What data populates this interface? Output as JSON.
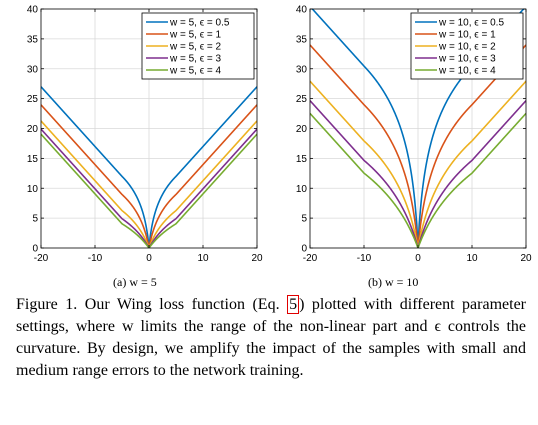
{
  "chart_data": [
    {
      "type": "line",
      "title": "",
      "xlabel": "",
      "ylabel": "",
      "xlim": [
        -20,
        20
      ],
      "ylim": [
        0,
        40
      ],
      "xticks": [
        -20,
        -10,
        0,
        10,
        20
      ],
      "yticks": [
        0,
        5,
        10,
        15,
        20,
        25,
        30,
        35,
        40
      ],
      "grid": true,
      "legend": "top-right",
      "w": 5,
      "series": [
        {
          "name": "w = 5, ϵ = 0.5",
          "epsilon": 0.5,
          "color": "#0072BD"
        },
        {
          "name": "w = 5, ϵ = 1",
          "epsilon": 1,
          "color": "#D95319"
        },
        {
          "name": "w = 5, ϵ = 2",
          "epsilon": 2,
          "color": "#EDB120"
        },
        {
          "name": "w = 5, ϵ = 3",
          "epsilon": 3,
          "color": "#7E2F8E"
        },
        {
          "name": "w = 5, ϵ = 4",
          "epsilon": 4,
          "color": "#77AC30"
        }
      ]
    },
    {
      "type": "line",
      "title": "",
      "xlabel": "",
      "ylabel": "",
      "xlim": [
        -20,
        20
      ],
      "ylim": [
        0,
        40
      ],
      "xticks": [
        -20,
        -10,
        0,
        10,
        20
      ],
      "yticks": [
        0,
        5,
        10,
        15,
        20,
        25,
        30,
        35,
        40
      ],
      "grid": true,
      "legend": "top-right",
      "w": 10,
      "series": [
        {
          "name": "w = 10, ϵ = 0.5",
          "epsilon": 0.5,
          "color": "#0072BD"
        },
        {
          "name": "w = 10, ϵ = 1",
          "epsilon": 1,
          "color": "#D95319"
        },
        {
          "name": "w = 10, ϵ = 2",
          "epsilon": 2,
          "color": "#EDB120"
        },
        {
          "name": "w = 10, ϵ = 3",
          "epsilon": 3,
          "color": "#7E2F8E"
        },
        {
          "name": "w = 10, ϵ = 4",
          "epsilon": 4,
          "color": "#77AC30"
        }
      ]
    }
  ],
  "subcaptions": [
    "(a) w = 5",
    "(b) w = 10"
  ],
  "caption": {
    "prefix": "Figure 1. Our Wing loss function (Eq. ",
    "ref": "5",
    "suffix": ") plotted with different parameter settings, where w limits the range of the non-linear part and ϵ controls the curvature. By design, we amplify the impact of the samples with small and medium range errors to the network training."
  }
}
